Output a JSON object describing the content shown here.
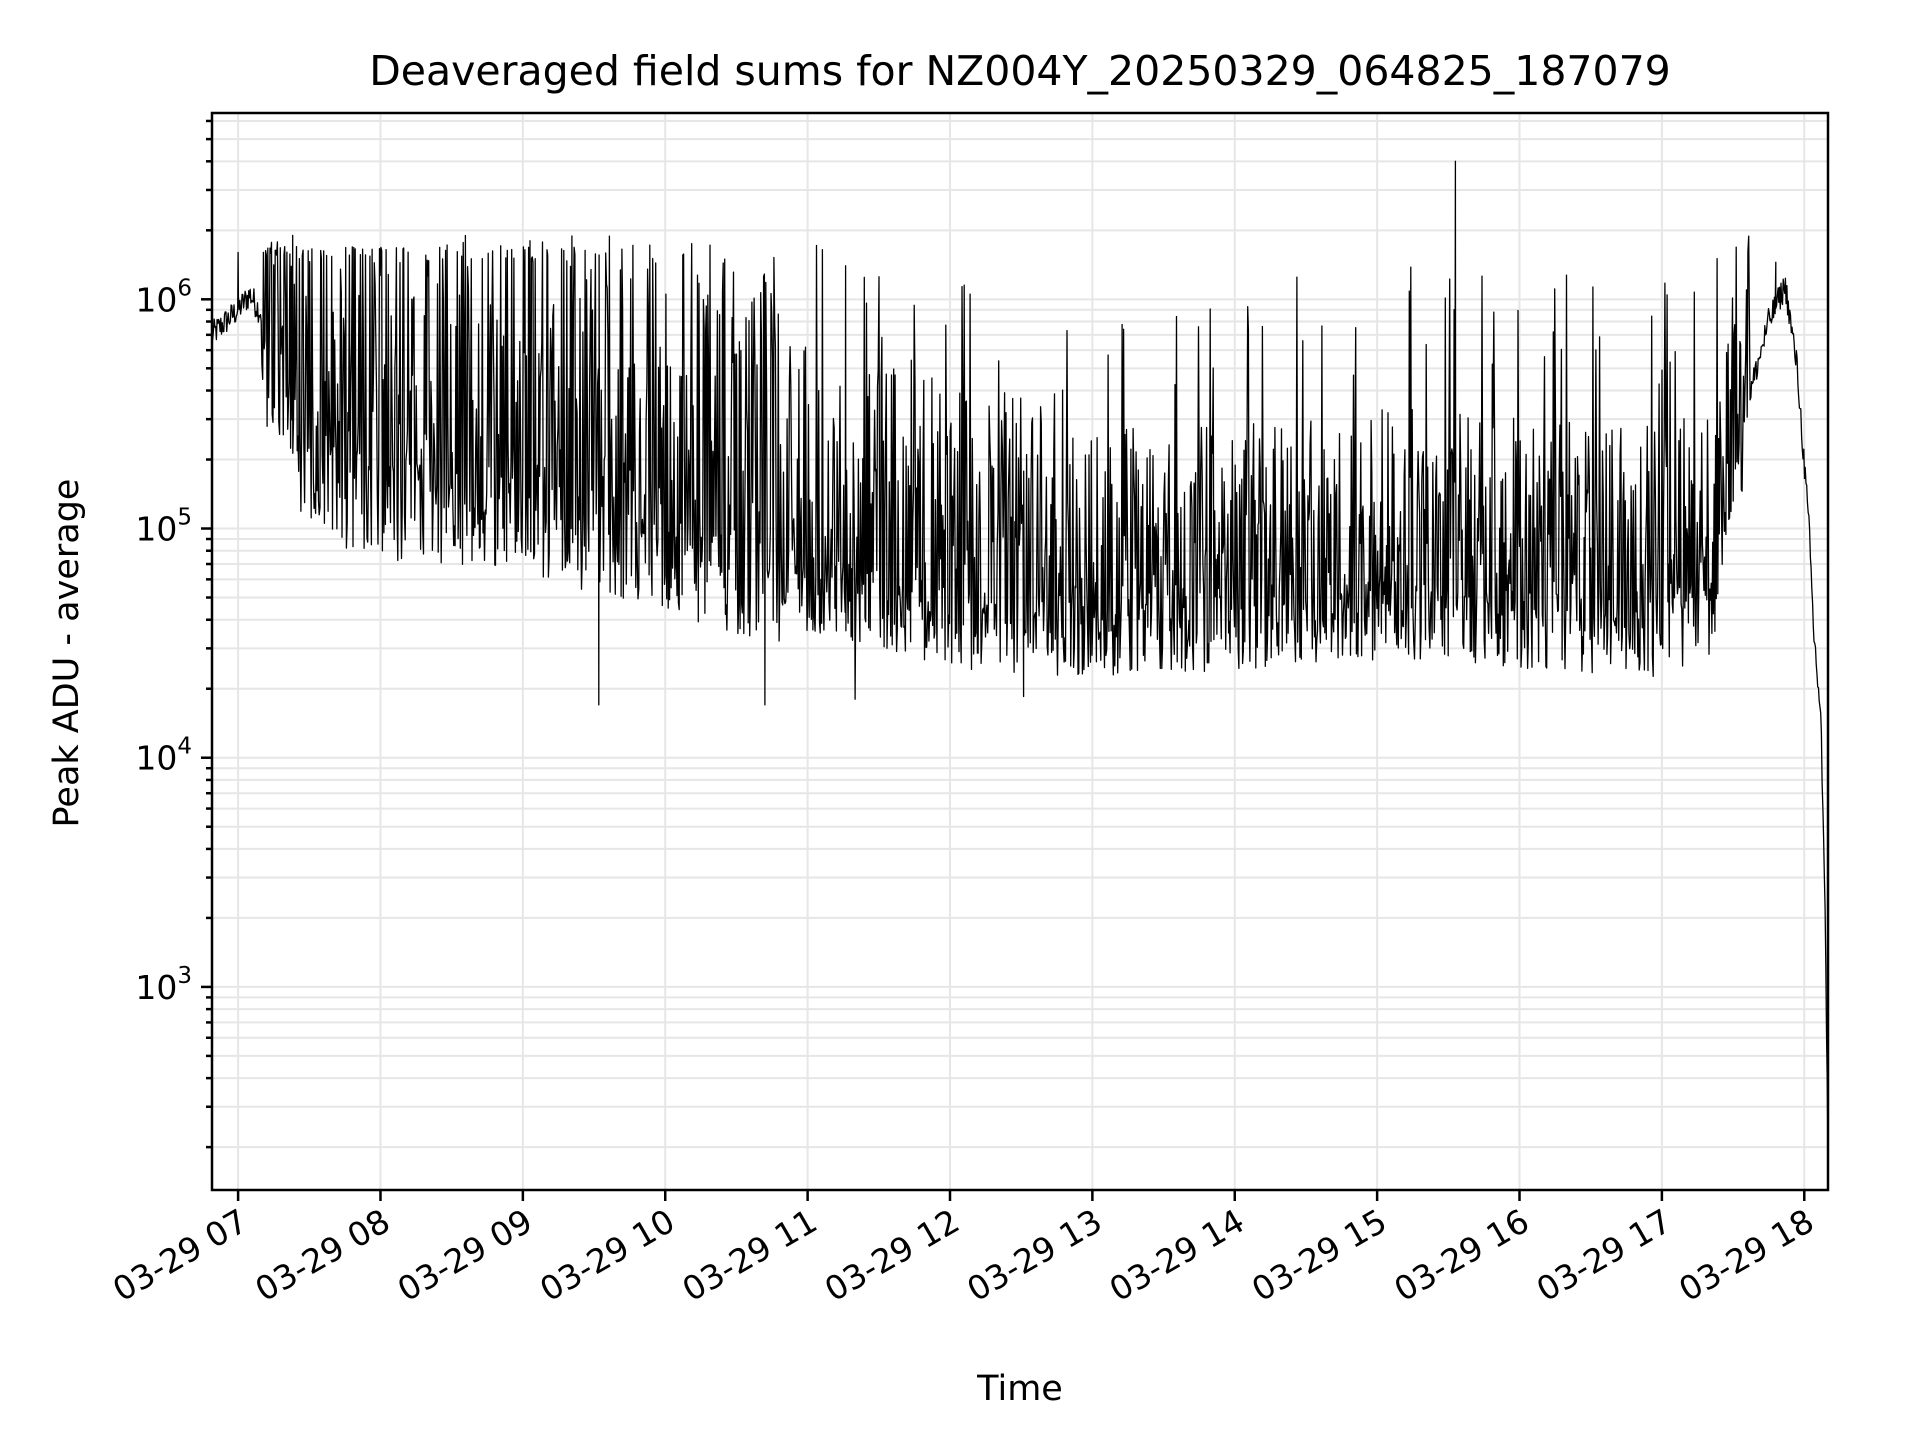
{
  "chart_data": {
    "type": "line",
    "title": "Deaveraged field sums for NZ004Y_20250329_064825_187079",
    "xlabel": "Time",
    "ylabel": "Peak ADU - average",
    "yscale": "log",
    "xlim": [
      "2025-03-29T06:49:00",
      "2025-03-29T18:10:00"
    ],
    "ylim": [
      130,
      6500000
    ],
    "grid": true,
    "x_ticks": [
      "03-29 07",
      "03-29 08",
      "03-29 09",
      "03-29 10",
      "03-29 11",
      "03-29 12",
      "03-29 13",
      "03-29 14",
      "03-29 15",
      "03-29 16",
      "03-29 17",
      "03-29 18"
    ],
    "y_ticks": [
      {
        "value": 1000,
        "base": "10",
        "exp": "3"
      },
      {
        "value": 10000,
        "base": "10",
        "exp": "4"
      },
      {
        "value": 100000,
        "base": "10",
        "exp": "5"
      },
      {
        "value": 1000000,
        "base": "10",
        "exp": "6"
      }
    ],
    "series": [
      {
        "color": "#000000",
        "baseline_envelope": [
          {
            "x": "2025-03-29T06:49:00",
            "y": 700000
          },
          {
            "x": "2025-03-29T07:00:00",
            "y": 900000
          },
          {
            "x": "2025-03-29T07:05:00",
            "y": 1050000
          },
          {
            "x": "2025-03-29T07:15:00",
            "y": 700000
          },
          {
            "x": "2025-03-29T07:30:00",
            "y": 250000
          },
          {
            "x": "2025-03-29T08:00:00",
            "y": 200000
          },
          {
            "x": "2025-03-29T09:00:00",
            "y": 180000
          },
          {
            "x": "2025-03-29T10:00:00",
            "y": 120000
          },
          {
            "x": "2025-03-29T11:00:00",
            "y": 80000
          },
          {
            "x": "2025-03-29T12:00:00",
            "y": 55000
          },
          {
            "x": "2025-03-29T13:00:00",
            "y": 50000
          },
          {
            "x": "2025-03-29T14:00:00",
            "y": 52000
          },
          {
            "x": "2025-03-29T15:00:00",
            "y": 60000
          },
          {
            "x": "2025-03-29T16:00:00",
            "y": 55000
          },
          {
            "x": "2025-03-29T17:00:00",
            "y": 50000
          },
          {
            "x": "2025-03-29T17:20:00",
            "y": 60000
          },
          {
            "x": "2025-03-29T17:30:00",
            "y": 200000
          },
          {
            "x": "2025-03-29T17:45:00",
            "y": 800000
          },
          {
            "x": "2025-03-29T17:52:00",
            "y": 1150000
          },
          {
            "x": "2025-03-29T17:57:00",
            "y": 500000
          },
          {
            "x": "2025-03-29T18:02:00",
            "y": 100000
          },
          {
            "x": "2025-03-29T18:04:00",
            "y": 35000
          },
          {
            "x": "2025-03-29T18:07:00",
            "y": 15000
          },
          {
            "x": "2025-03-29T18:09:00",
            "y": 1500
          },
          {
            "x": "2025-03-29T18:10:00",
            "y": 200
          }
        ],
        "notable_points": [
          {
            "x": "2025-03-29T07:00:00",
            "y": 1600000
          },
          {
            "x": "2025-03-29T07:23:00",
            "y": 1900000
          },
          {
            "x": "2025-03-29T09:03:00",
            "y": 1800000
          },
          {
            "x": "2025-03-29T11:16:00",
            "y": 1400000
          },
          {
            "x": "2025-03-29T09:32:00",
            "y": 17000
          },
          {
            "x": "2025-03-29T10:42:00",
            "y": 17000
          },
          {
            "x": "2025-03-29T11:20:00",
            "y": 18000
          },
          {
            "x": "2025-03-29T12:31:00",
            "y": 18500
          },
          {
            "x": "2025-03-29T15:33:00",
            "y": 4000000
          },
          {
            "x": "2025-03-29T17:48:00",
            "y": 1450000
          }
        ]
      }
    ]
  }
}
